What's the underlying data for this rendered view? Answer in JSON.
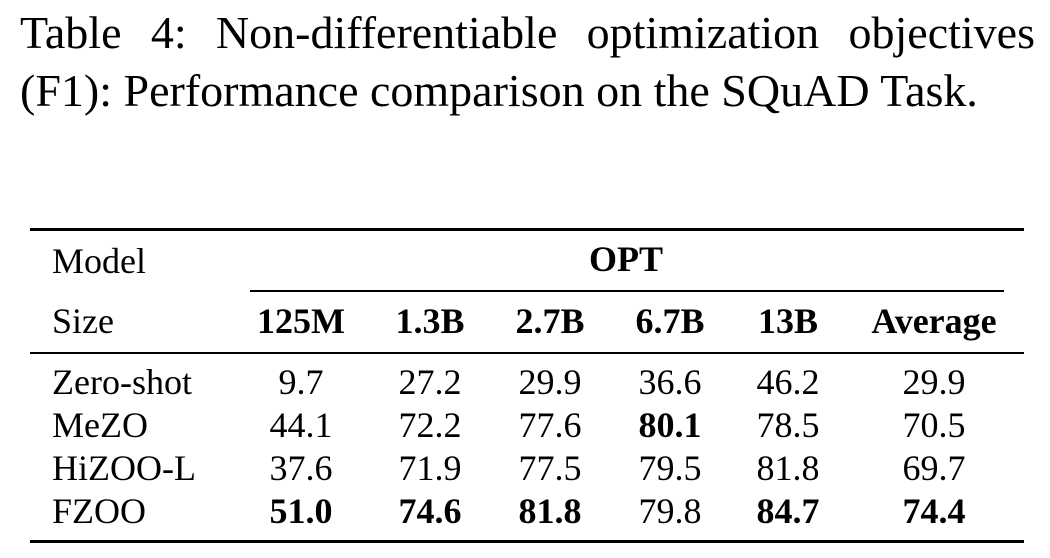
{
  "caption": "Table 4: Non-differentiable optimization objectives (F1): Performance comparison on the SQuAD Task.",
  "table": {
    "header_model": "Model",
    "header_size": "Size",
    "group_label": "OPT",
    "columns": [
      "125M",
      "1.3B",
      "2.7B",
      "6.7B",
      "13B",
      "Average"
    ],
    "rows": [
      {
        "name": "Zero-shot",
        "values": [
          "9.7",
          "27.2",
          "29.9",
          "36.6",
          "46.2",
          "29.9"
        ],
        "bold": [
          false,
          false,
          false,
          false,
          false,
          false
        ]
      },
      {
        "name": "MeZO",
        "values": [
          "44.1",
          "72.2",
          "77.6",
          "80.1",
          "78.5",
          "70.5"
        ],
        "bold": [
          false,
          false,
          false,
          true,
          false,
          false
        ]
      },
      {
        "name": "HiZOO-L",
        "values": [
          "37.6",
          "71.9",
          "77.5",
          "79.5",
          "81.8",
          "69.7"
        ],
        "bold": [
          false,
          false,
          false,
          false,
          false,
          false
        ]
      },
      {
        "name": "FZOO",
        "values": [
          "51.0",
          "74.6",
          "81.8",
          "79.8",
          "84.7",
          "74.4"
        ],
        "bold": [
          true,
          true,
          true,
          false,
          true,
          true
        ]
      }
    ]
  }
}
